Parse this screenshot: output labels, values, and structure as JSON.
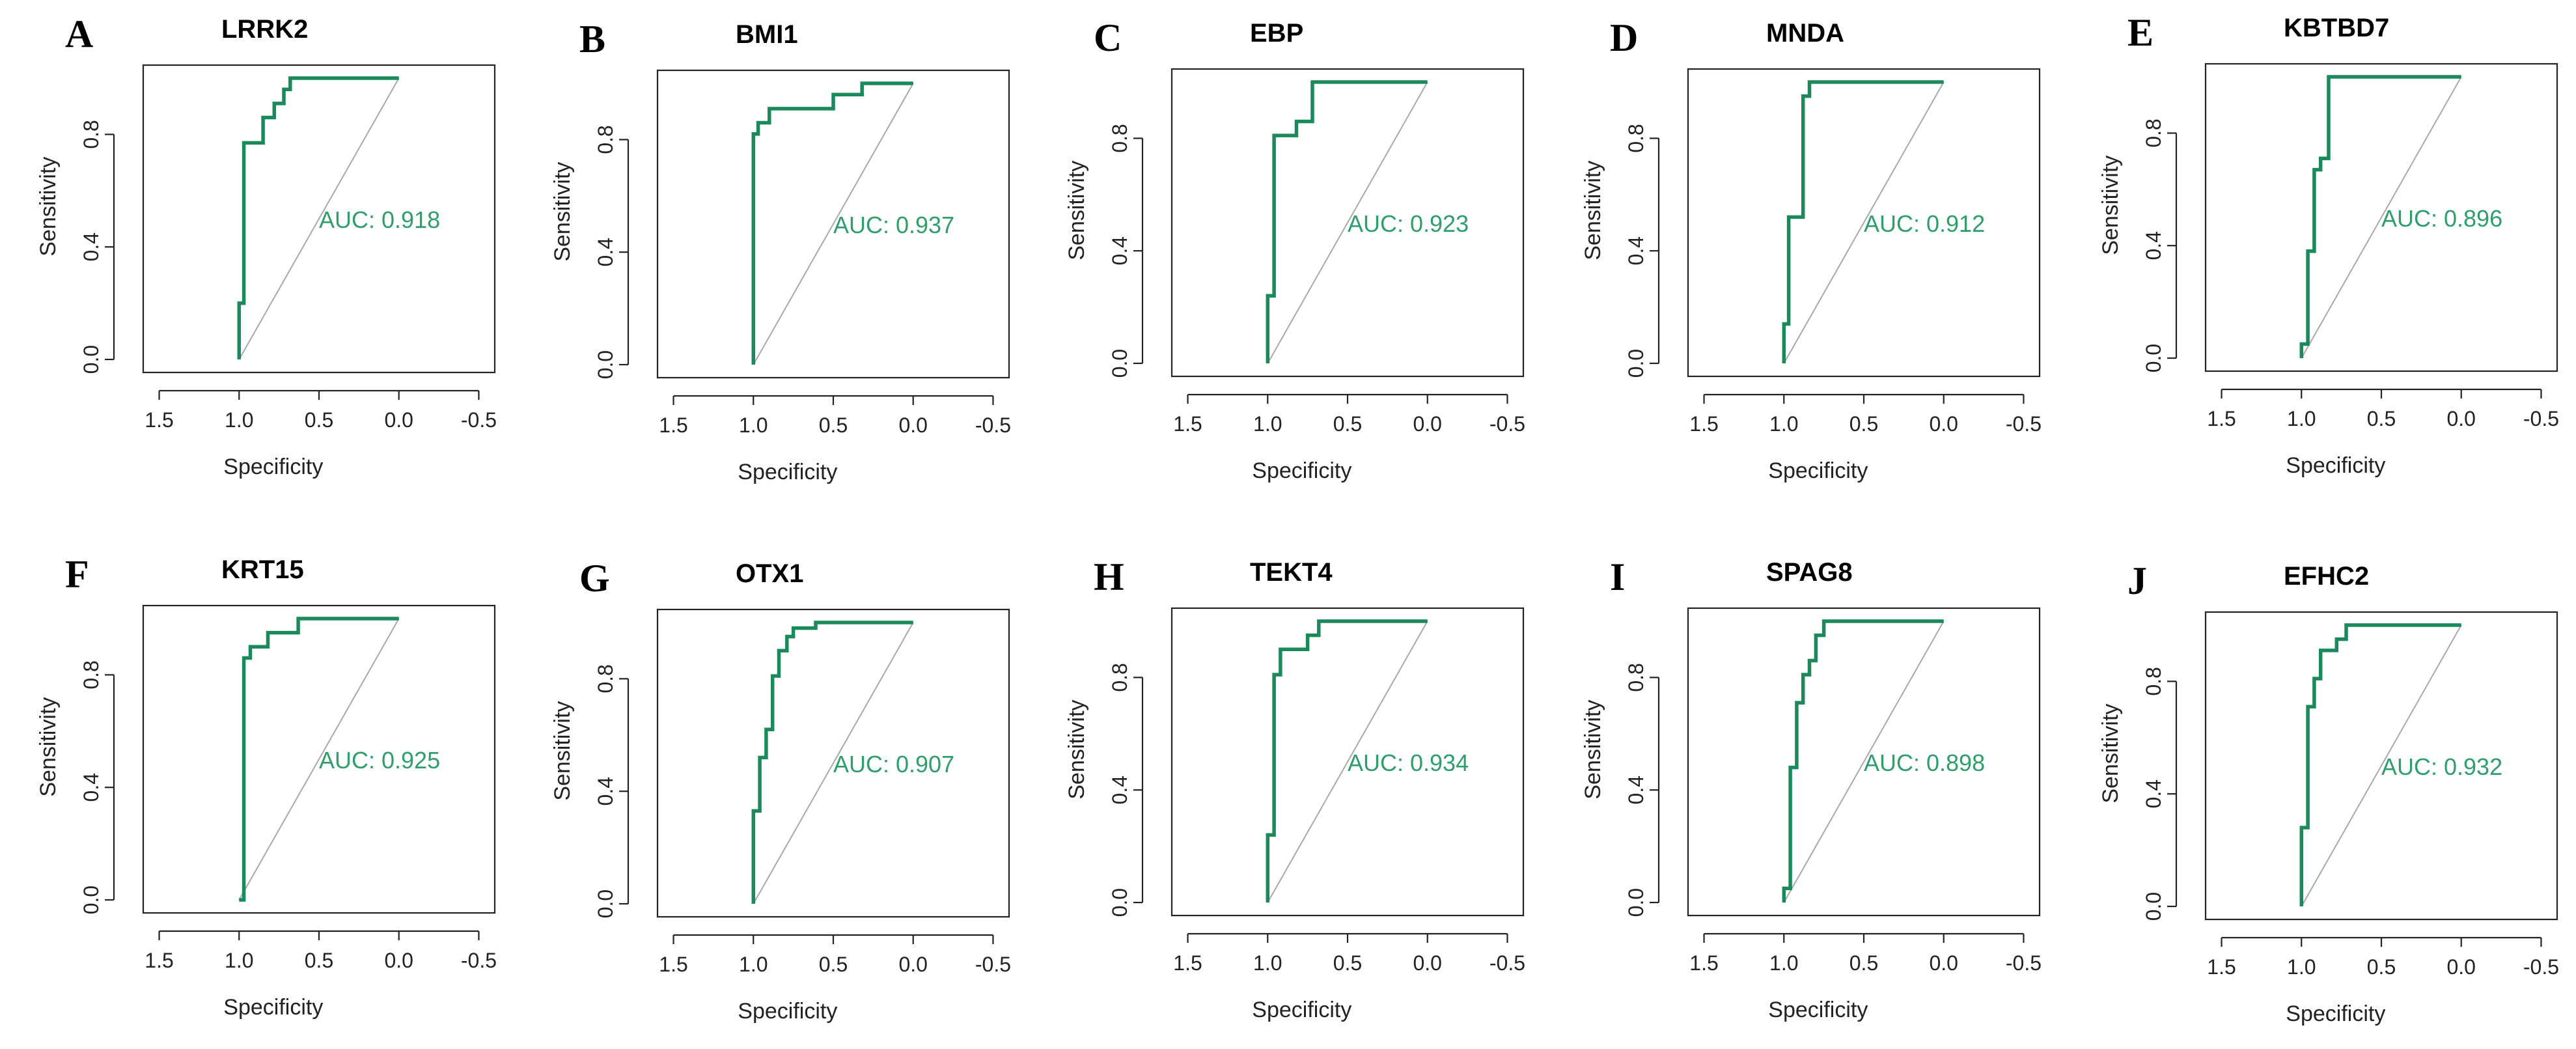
{
  "figure": {
    "name": "ROC curves for ten genes"
  },
  "colors": {
    "roc": "#1b8a5a",
    "auc_text": "#2e9e6a",
    "diagonal": "#a8a8a8",
    "axis": "#222222"
  },
  "chart_data": [
    {
      "type": "line",
      "panel": "A",
      "title": "LRRK2",
      "auc_label": "AUC: 0.918",
      "xlabel": "Specificity",
      "ylabel": "Sensitivity",
      "xlim": [
        1.6,
        -0.6
      ],
      "ylim": [
        0,
        1
      ],
      "x_ticks": [
        "1.5",
        "1.0",
        "0.5",
        "0.0",
        "-0.5"
      ],
      "y_ticks": [
        "0.0",
        "0.4",
        "0.8"
      ],
      "x": [
        1.0,
        1.0,
        0.97,
        0.97,
        0.85,
        0.85,
        0.78,
        0.78,
        0.72,
        0.72,
        0.68,
        0.68,
        0.0
      ],
      "y": [
        0.0,
        0.2,
        0.2,
        0.77,
        0.77,
        0.86,
        0.86,
        0.91,
        0.91,
        0.96,
        0.96,
        1.0,
        1.0
      ]
    },
    {
      "type": "line",
      "panel": "B",
      "title": "BMI1",
      "auc_label": "AUC: 0.937",
      "xlabel": "Specificity",
      "ylabel": "Sensitivity",
      "xlim": [
        1.6,
        -0.6
      ],
      "ylim": [
        0,
        1
      ],
      "x_ticks": [
        "1.5",
        "1.0",
        "0.5",
        "0.0",
        "-0.5"
      ],
      "y_ticks": [
        "0.0",
        "0.4",
        "0.8"
      ],
      "x": [
        1.0,
        1.0,
        0.97,
        0.97,
        0.9,
        0.9,
        0.5,
        0.5,
        0.32,
        0.32,
        0.0
      ],
      "y": [
        0.0,
        0.82,
        0.82,
        0.86,
        0.86,
        0.91,
        0.91,
        0.96,
        0.96,
        1.0,
        1.0
      ]
    },
    {
      "type": "line",
      "panel": "C",
      "title": "EBP",
      "auc_label": "AUC: 0.923",
      "xlabel": "Specificity",
      "ylabel": "Sensitivity",
      "xlim": [
        1.6,
        -0.6
      ],
      "ylim": [
        0,
        1
      ],
      "x_ticks": [
        "1.5",
        "1.0",
        "0.5",
        "0.0",
        "-0.5"
      ],
      "y_ticks": [
        "0.0",
        "0.4",
        "0.8"
      ],
      "x": [
        1.0,
        1.0,
        0.96,
        0.96,
        0.82,
        0.82,
        0.72,
        0.72,
        0.0
      ],
      "y": [
        0.0,
        0.24,
        0.24,
        0.81,
        0.81,
        0.86,
        0.86,
        1.0,
        1.0
      ]
    },
    {
      "type": "line",
      "panel": "D",
      "title": "MNDA",
      "auc_label": "AUC: 0.912",
      "xlabel": "Specificity",
      "ylabel": "Sensitivity",
      "xlim": [
        1.6,
        -0.6
      ],
      "ylim": [
        0,
        1
      ],
      "x_ticks": [
        "1.5",
        "1.0",
        "0.5",
        "0.0",
        "-0.5"
      ],
      "y_ticks": [
        "0.0",
        "0.4",
        "0.8"
      ],
      "x": [
        1.0,
        1.0,
        0.97,
        0.97,
        0.88,
        0.88,
        0.84,
        0.84,
        0.0
      ],
      "y": [
        0.0,
        0.14,
        0.14,
        0.52,
        0.52,
        0.95,
        0.95,
        1.0,
        1.0
      ]
    },
    {
      "type": "line",
      "panel": "E",
      "title": "KBTBD7",
      "auc_label": "AUC: 0.896",
      "xlabel": "Specificity",
      "ylabel": "Sensitivity",
      "xlim": [
        1.6,
        -0.6
      ],
      "ylim": [
        0,
        1
      ],
      "x_ticks": [
        "1.5",
        "1.0",
        "0.5",
        "0.0",
        "-0.5"
      ],
      "y_ticks": [
        "0.0",
        "0.4",
        "0.8"
      ],
      "x": [
        1.0,
        1.0,
        0.96,
        0.96,
        0.92,
        0.92,
        0.88,
        0.88,
        0.83,
        0.83,
        0.0
      ],
      "y": [
        0.0,
        0.05,
        0.05,
        0.38,
        0.38,
        0.67,
        0.67,
        0.71,
        0.71,
        1.0,
        1.0
      ]
    },
    {
      "type": "line",
      "panel": "F",
      "title": "KRT15",
      "auc_label": "AUC: 0.925",
      "xlabel": "Specificity",
      "ylabel": "Sensitivity",
      "xlim": [
        1.6,
        -0.6
      ],
      "ylim": [
        0,
        1
      ],
      "x_ticks": [
        "1.5",
        "1.0",
        "0.5",
        "0.0",
        "-0.5"
      ],
      "y_ticks": [
        "0.0",
        "0.4",
        "0.8"
      ],
      "x": [
        1.0,
        0.97,
        0.97,
        0.93,
        0.93,
        0.82,
        0.82,
        0.63,
        0.63,
        0.0
      ],
      "y": [
        0.0,
        0.0,
        0.86,
        0.86,
        0.9,
        0.9,
        0.95,
        0.95,
        1.0,
        1.0
      ]
    },
    {
      "type": "line",
      "panel": "G",
      "title": "OTX1",
      "auc_label": "AUC: 0.907",
      "xlabel": "Specificity",
      "ylabel": "Sensitivity",
      "xlim": [
        1.6,
        -0.6
      ],
      "ylim": [
        0,
        1
      ],
      "x_ticks": [
        "1.5",
        "1.0",
        "0.5",
        "0.0",
        "-0.5"
      ],
      "y_ticks": [
        "0.0",
        "0.4",
        "0.8"
      ],
      "x": [
        1.0,
        1.0,
        0.96,
        0.96,
        0.92,
        0.92,
        0.88,
        0.88,
        0.84,
        0.84,
        0.79,
        0.79,
        0.75,
        0.75,
        0.61,
        0.61,
        0.0
      ],
      "y": [
        0.0,
        0.33,
        0.33,
        0.52,
        0.52,
        0.62,
        0.62,
        0.81,
        0.81,
        0.9,
        0.9,
        0.95,
        0.95,
        0.98,
        0.98,
        1.0,
        1.0
      ]
    },
    {
      "type": "line",
      "panel": "H",
      "title": "TEKT4",
      "auc_label": "AUC: 0.934",
      "xlabel": "Specificity",
      "ylabel": "Sensitivity",
      "xlim": [
        1.6,
        -0.6
      ],
      "ylim": [
        0,
        1
      ],
      "x_ticks": [
        "1.5",
        "1.0",
        "0.5",
        "0.0",
        "-0.5"
      ],
      "y_ticks": [
        "0.0",
        "0.4",
        "0.8"
      ],
      "x": [
        1.0,
        1.0,
        0.96,
        0.96,
        0.92,
        0.92,
        0.75,
        0.75,
        0.68,
        0.68,
        0.0
      ],
      "y": [
        0.0,
        0.24,
        0.24,
        0.81,
        0.81,
        0.9,
        0.9,
        0.95,
        0.95,
        1.0,
        1.0
      ]
    },
    {
      "type": "line",
      "panel": "I",
      "title": "SPAG8",
      "auc_label": "AUC: 0.898",
      "xlabel": "Specificity",
      "ylabel": "Sensitivity",
      "xlim": [
        1.6,
        -0.6
      ],
      "ylim": [
        0,
        1
      ],
      "x_ticks": [
        "1.5",
        "1.0",
        "0.5",
        "0.0",
        "-0.5"
      ],
      "y_ticks": [
        "0.0",
        "0.4",
        "0.8"
      ],
      "x": [
        1.0,
        1.0,
        0.96,
        0.96,
        0.92,
        0.92,
        0.88,
        0.88,
        0.84,
        0.84,
        0.8,
        0.8,
        0.75,
        0.75,
        0.0
      ],
      "y": [
        0.0,
        0.05,
        0.05,
        0.48,
        0.48,
        0.71,
        0.71,
        0.81,
        0.81,
        0.86,
        0.86,
        0.95,
        0.95,
        1.0,
        1.0
      ]
    },
    {
      "type": "line",
      "panel": "J",
      "title": "EFHC2",
      "auc_label": "AUC: 0.932",
      "xlabel": "Specificity",
      "ylabel": "Sensitivity",
      "xlim": [
        1.6,
        -0.6
      ],
      "ylim": [
        0,
        1
      ],
      "x_ticks": [
        "1.5",
        "1.0",
        "0.5",
        "0.0",
        "-0.5"
      ],
      "y_ticks": [
        "0.0",
        "0.4",
        "0.8"
      ],
      "x": [
        1.0,
        1.0,
        0.96,
        0.96,
        0.92,
        0.92,
        0.88,
        0.88,
        0.78,
        0.78,
        0.72,
        0.72,
        0.0
      ],
      "y": [
        0.0,
        0.28,
        0.28,
        0.71,
        0.71,
        0.81,
        0.81,
        0.91,
        0.91,
        0.95,
        0.95,
        1.0,
        1.0
      ]
    }
  ]
}
